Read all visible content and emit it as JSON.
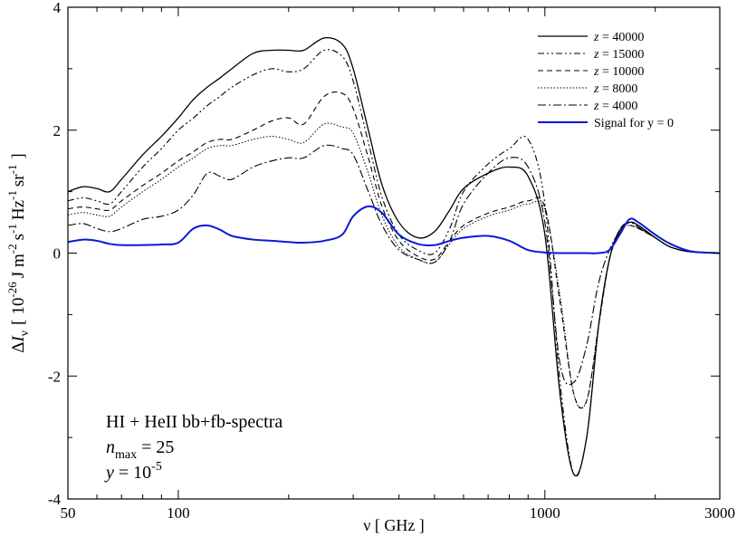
{
  "chart_data": {
    "type": "line",
    "xscale": "log",
    "xlim": [
      50,
      3000
    ],
    "ylim": [
      -4,
      4
    ],
    "xlabel": "ν [ GHz ]",
    "ylabel": {
      "delta": "Δ",
      "I": "I",
      "nu": "ν",
      "bracket_open": "[",
      "exp_value": "10",
      "exp_power": "-26",
      "unit_J": "J m",
      "exp_m": "-2",
      "unit_s": "s",
      "exp_s": "-1",
      "unit_hz": "Hz",
      "exp_hz": "-1",
      "unit_sr": "sr",
      "exp_sr": "-1",
      "bracket_close": "]"
    },
    "x_ticks": [
      {
        "value": 50,
        "label": "50"
      },
      {
        "value": 100,
        "label": "100"
      },
      {
        "value": 1000,
        "label": "1000"
      },
      {
        "value": 3000,
        "label": "3000"
      }
    ],
    "y_ticks": [
      {
        "value": -4,
        "label": "-4"
      },
      {
        "value": -2,
        "label": "-2"
      },
      {
        "value": 0,
        "label": "0"
      },
      {
        "value": 2,
        "label": "2"
      },
      {
        "value": 4,
        "label": "4"
      }
    ],
    "x": [
      50,
      55,
      60,
      65,
      70,
      80,
      90,
      100,
      110,
      120,
      130,
      140,
      160,
      180,
      200,
      220,
      250,
      280,
      300,
      330,
      360,
      400,
      450,
      500,
      550,
      600,
      700,
      800,
      900,
      1000,
      1100,
      1200,
      1300,
      1400,
      1500,
      1600,
      1700,
      1800,
      2000,
      2200,
      2500,
      3000
    ],
    "series": [
      {
        "name": "z = 40000",
        "legend_var": "z",
        "legend_rest": " = 40000",
        "color": "#000000",
        "width": 1.3,
        "dash": "",
        "values": [
          1.0,
          1.08,
          1.05,
          1.0,
          1.2,
          1.6,
          1.9,
          2.2,
          2.5,
          2.7,
          2.85,
          3.0,
          3.25,
          3.3,
          3.3,
          3.3,
          3.5,
          3.4,
          3.0,
          2.0,
          1.1,
          0.5,
          0.25,
          0.35,
          0.7,
          1.05,
          1.3,
          1.4,
          1.25,
          0.3,
          -2.3,
          -3.6,
          -3.0,
          -1.2,
          -0.1,
          0.35,
          0.5,
          0.45,
          0.25,
          0.1,
          0.02,
          0.0
        ]
      },
      {
        "name": "z = 15000",
        "legend_var": "z",
        "legend_rest": " = 15000",
        "color": "#000000",
        "width": 1.1,
        "dash": "7,3,2,3,2,3",
        "values": [
          0.85,
          0.9,
          0.85,
          0.8,
          1.0,
          1.4,
          1.7,
          2.0,
          2.2,
          2.4,
          2.55,
          2.7,
          2.9,
          3.0,
          2.95,
          3.0,
          3.3,
          3.2,
          2.8,
          1.8,
          0.9,
          0.3,
          0.05,
          0.0,
          0.4,
          1.0,
          1.45,
          1.7,
          1.85,
          0.8,
          -2.1,
          -3.6,
          -3.0,
          -1.2,
          -0.1,
          0.38,
          0.5,
          0.42,
          0.25,
          0.1,
          0.02,
          0.0
        ]
      },
      {
        "name": "z = 10000",
        "legend_var": "z",
        "legend_rest": " = 10000",
        "color": "#000000",
        "width": 1.1,
        "dash": "6,4",
        "values": [
          0.72,
          0.75,
          0.72,
          0.7,
          0.85,
          1.1,
          1.3,
          1.5,
          1.65,
          1.8,
          1.85,
          1.85,
          2.0,
          2.15,
          2.2,
          2.1,
          2.55,
          2.6,
          2.35,
          1.55,
          0.75,
          0.2,
          -0.05,
          -0.1,
          0.2,
          0.45,
          0.65,
          0.75,
          0.85,
          0.75,
          -0.8,
          -2.3,
          -2.4,
          -1.2,
          -0.1,
          0.38,
          0.45,
          0.4,
          0.25,
          0.1,
          0.02,
          0.0
        ]
      },
      {
        "name": "z = 8000",
        "legend_var": "z",
        "legend_rest": " = 8000",
        "color": "#000000",
        "width": 1.0,
        "dash": "1.5,2",
        "values": [
          0.62,
          0.66,
          0.62,
          0.6,
          0.75,
          1.0,
          1.2,
          1.4,
          1.55,
          1.7,
          1.75,
          1.75,
          1.85,
          1.9,
          1.85,
          1.8,
          2.1,
          2.05,
          1.95,
          1.3,
          0.6,
          0.1,
          -0.1,
          -0.15,
          0.15,
          0.4,
          0.6,
          0.7,
          0.8,
          0.7,
          -0.7,
          -2.3,
          -2.4,
          -1.2,
          -0.1,
          0.38,
          0.45,
          0.4,
          0.25,
          0.1,
          0.02,
          0.0
        ]
      },
      {
        "name": "z = 4000",
        "legend_var": "z",
        "legend_rest": " = 4000",
        "color": "#000000",
        "width": 1.1,
        "dash": "9,3,2,3",
        "values": [
          0.45,
          0.48,
          0.4,
          0.35,
          0.4,
          0.55,
          0.6,
          0.7,
          0.95,
          1.3,
          1.25,
          1.2,
          1.4,
          1.5,
          1.55,
          1.55,
          1.75,
          1.7,
          1.6,
          1.0,
          0.45,
          0.05,
          -0.1,
          -0.15,
          0.2,
          0.8,
          1.3,
          1.55,
          1.4,
          0.5,
          -1.8,
          -2.1,
          -1.5,
          -0.5,
          0.05,
          0.35,
          0.5,
          0.42,
          0.25,
          0.1,
          0.02,
          0.0
        ]
      },
      {
        "name": "Signal for y = 0",
        "legend_var": "",
        "legend_rest": "Signal for y = 0",
        "color": "#0a18d8",
        "width": 2.0,
        "dash": "",
        "values": [
          0.18,
          0.22,
          0.2,
          0.15,
          0.13,
          0.13,
          0.14,
          0.17,
          0.4,
          0.45,
          0.38,
          0.28,
          0.22,
          0.2,
          0.18,
          0.17,
          0.2,
          0.3,
          0.6,
          0.76,
          0.65,
          0.3,
          0.15,
          0.13,
          0.2,
          0.25,
          0.28,
          0.2,
          0.05,
          0.01,
          0.0,
          0.0,
          0.0,
          0.0,
          0.05,
          0.3,
          0.55,
          0.5,
          0.3,
          0.15,
          0.03,
          0.0
        ]
      }
    ],
    "annotations": {
      "line1": "HI + HeII bb+fb-spectra",
      "n_var": "n",
      "n_sub": "max",
      "n_rest": " = 25",
      "y_var": "y",
      "y_rest": " = 10",
      "y_sup": "-5"
    },
    "legend_position": "top-right",
    "grid": false
  }
}
